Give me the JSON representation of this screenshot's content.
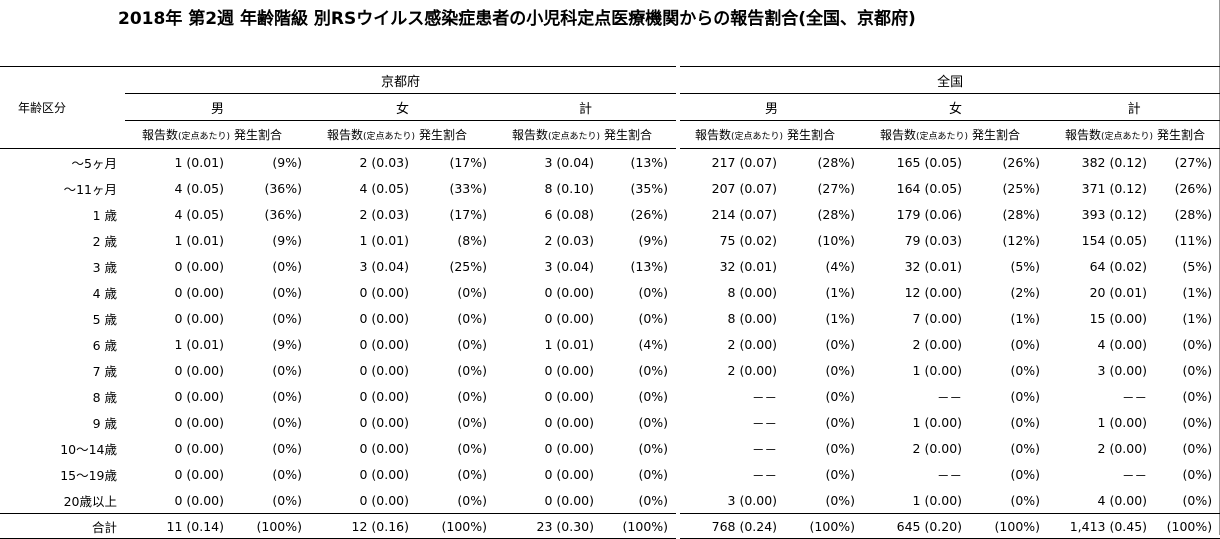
{
  "title": "2018年 第2週 年齢階級 別RSウイルス感染症患者の小児科定点医療機関からの報告割合(全国、京都府)",
  "age_header": "年齢区分",
  "regions": [
    "京都府",
    "全国"
  ],
  "sexes": [
    "男",
    "女",
    "計"
  ],
  "sub_headers": {
    "count": "報告数",
    "per_site": "(定点あたり)",
    "rate": "発生割合"
  },
  "rows": [
    {
      "age": "～5ヶ月",
      "cells": [
        "1 (0.01)",
        "(9%)",
        "2 (0.03)",
        "(17%)",
        "3 (0.04)",
        "(13%)",
        "217 (0.07)",
        "(28%)",
        "165 (0.05)",
        "(26%)",
        "382 (0.12)",
        "(27%)"
      ]
    },
    {
      "age": "～11ヶ月",
      "cells": [
        "4 (0.05)",
        "(36%)",
        "4 (0.05)",
        "(33%)",
        "8 (0.10)",
        "(35%)",
        "207 (0.07)",
        "(27%)",
        "164 (0.05)",
        "(25%)",
        "371 (0.12)",
        "(26%)"
      ]
    },
    {
      "age": "1 歳",
      "cells": [
        "4 (0.05)",
        "(36%)",
        "2 (0.03)",
        "(17%)",
        "6 (0.08)",
        "(26%)",
        "214 (0.07)",
        "(28%)",
        "179 (0.06)",
        "(28%)",
        "393 (0.12)",
        "(28%)"
      ]
    },
    {
      "age": "2 歳",
      "cells": [
        "1 (0.01)",
        "(9%)",
        "1 (0.01)",
        "(8%)",
        "2 (0.03)",
        "(9%)",
        "75 (0.02)",
        "(10%)",
        "79 (0.03)",
        "(12%)",
        "154 (0.05)",
        "(11%)"
      ]
    },
    {
      "age": "3 歳",
      "cells": [
        "0 (0.00)",
        "(0%)",
        "3 (0.04)",
        "(25%)",
        "3 (0.04)",
        "(13%)",
        "32 (0.01)",
        "(4%)",
        "32 (0.01)",
        "(5%)",
        "64 (0.02)",
        "(5%)"
      ]
    },
    {
      "age": "4 歳",
      "cells": [
        "0 (0.00)",
        "(0%)",
        "0 (0.00)",
        "(0%)",
        "0 (0.00)",
        "(0%)",
        "8 (0.00)",
        "(1%)",
        "12 (0.00)",
        "(2%)",
        "20 (0.01)",
        "(1%)"
      ]
    },
    {
      "age": "5 歳",
      "cells": [
        "0 (0.00)",
        "(0%)",
        "0 (0.00)",
        "(0%)",
        "0 (0.00)",
        "(0%)",
        "8 (0.00)",
        "(1%)",
        "7 (0.00)",
        "(1%)",
        "15 (0.00)",
        "(1%)"
      ]
    },
    {
      "age": "6 歳",
      "cells": [
        "1 (0.01)",
        "(9%)",
        "0 (0.00)",
        "(0%)",
        "1 (0.01)",
        "(4%)",
        "2 (0.00)",
        "(0%)",
        "2 (0.00)",
        "(0%)",
        "4 (0.00)",
        "(0%)"
      ]
    },
    {
      "age": "7 歳",
      "cells": [
        "0 (0.00)",
        "(0%)",
        "0 (0.00)",
        "(0%)",
        "0 (0.00)",
        "(0%)",
        "2 (0.00)",
        "(0%)",
        "1 (0.00)",
        "(0%)",
        "3 (0.00)",
        "(0%)"
      ]
    },
    {
      "age": "8 歳",
      "cells": [
        "0 (0.00)",
        "(0%)",
        "0 (0.00)",
        "(0%)",
        "0 (0.00)",
        "(0%)",
        "－－",
        "(0%)",
        "－－",
        "(0%)",
        "－－",
        "(0%)"
      ]
    },
    {
      "age": "9 歳",
      "cells": [
        "0 (0.00)",
        "(0%)",
        "0 (0.00)",
        "(0%)",
        "0 (0.00)",
        "(0%)",
        "－－",
        "(0%)",
        "1 (0.00)",
        "(0%)",
        "1 (0.00)",
        "(0%)"
      ]
    },
    {
      "age": "10～14歳",
      "cells": [
        "0 (0.00)",
        "(0%)",
        "0 (0.00)",
        "(0%)",
        "0 (0.00)",
        "(0%)",
        "－－",
        "(0%)",
        "2 (0.00)",
        "(0%)",
        "2 (0.00)",
        "(0%)"
      ]
    },
    {
      "age": "15～19歳",
      "cells": [
        "0 (0.00)",
        "(0%)",
        "0 (0.00)",
        "(0%)",
        "0 (0.00)",
        "(0%)",
        "－－",
        "(0%)",
        "－－",
        "(0%)",
        "－－",
        "(0%)"
      ]
    },
    {
      "age": "20歳以上",
      "cells": [
        "0 (0.00)",
        "(0%)",
        "0 (0.00)",
        "(0%)",
        "0 (0.00)",
        "(0%)",
        "3 (0.00)",
        "(0%)",
        "1 (0.00)",
        "(0%)",
        "4 (0.00)",
        "(0%)"
      ]
    }
  ],
  "total": {
    "age": "合計",
    "cells": [
      "11 (0.14)",
      "(100%)",
      "12 (0.16)",
      "(100%)",
      "23 (0.30)",
      "(100%)",
      "768 (0.24)",
      "(100%)",
      "645 (0.20)",
      "(100%)",
      "1,413 (0.45)",
      "(100%)"
    ]
  }
}
